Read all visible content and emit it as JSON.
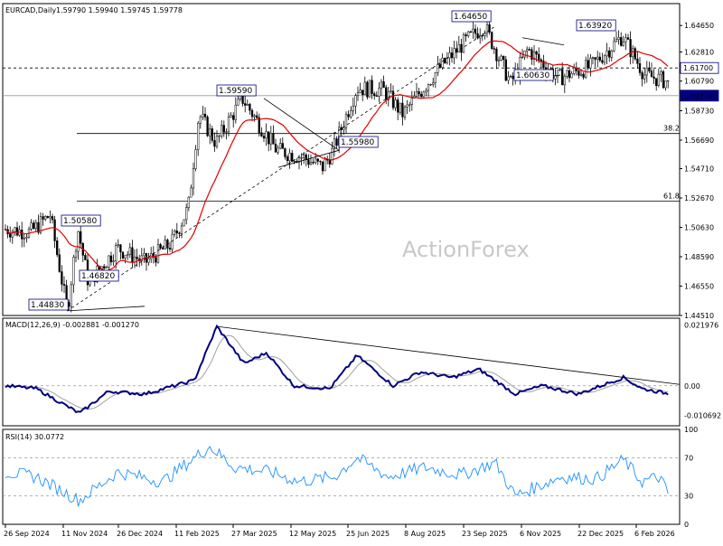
{
  "chart_data": [
    {
      "type": "candlestick",
      "title": "EURCAD,Daily",
      "ohlc": "1.59790 1.59940 1.59745 1.59778",
      "watermark": "ActionForex",
      "ylim": [
        1.4451,
        1.6617
      ],
      "y_ticks": [
        "1.64650",
        "1.62810",
        "1.60790",
        "1.58730",
        "1.56690",
        "1.54710",
        "1.52670",
        "1.50630",
        "1.48590",
        "1.46550",
        "1.44510"
      ],
      "price_labels": [
        {
          "text": "1.64650",
          "price": 1.6465,
          "date": "2025-09-25"
        },
        {
          "text": "1.63920",
          "price": 1.6392,
          "date": "2026-01-08"
        },
        {
          "text": "1.60630",
          "price": 1.6063,
          "date": "2025-10-15"
        },
        {
          "text": "1.59590",
          "price": 1.5959,
          "date": "2025-03-25"
        },
        {
          "text": "1.55980",
          "price": 1.5598,
          "date": "2025-06-02"
        },
        {
          "text": "1.50580",
          "price": 1.5058,
          "date": "2024-11-20"
        },
        {
          "text": "1.46820",
          "price": 1.4682,
          "date": "2024-11-28"
        },
        {
          "text": "1.44830",
          "price": 1.4483,
          "date": "2024-11-12"
        }
      ],
      "right_labels": [
        {
          "text": "1.61700",
          "price": 1.617
        },
        {
          "text": "1.59778",
          "price": 1.59778
        }
      ],
      "fib_levels": [
        {
          "text": "38.2",
          "price": 1.5715
        },
        {
          "text": "61.8",
          "price": 1.5246
        }
      ],
      "last_price": 1.59778
    },
    {
      "type": "line",
      "title": "MACD(12,26,9) -0.002881 -0.001270",
      "ylim": [
        -0.0145,
        0.0245
      ],
      "y_ticks": [
        "0.021976",
        "0.00",
        "-0.010692"
      ]
    },
    {
      "type": "line",
      "title": "RSI(14) 30.0772",
      "ylim": [
        0,
        100
      ],
      "y_ticks": [
        "100",
        "70",
        "30",
        "0"
      ],
      "levels": [
        70,
        30
      ]
    }
  ],
  "x_ticks": [
    "26 Sep 2024",
    "11 Nov 2024",
    "26 Dec 2024",
    "11 Feb 2025",
    "27 Mar 2025",
    "12 May 2025",
    "25 Jun 2025",
    "8 Aug 2025",
    "23 Sep 2025",
    "6 Nov 2025",
    "22 Dec 2025",
    "6 Feb 2026"
  ],
  "colors": {
    "candle": "#000000",
    "ma": "#e00000",
    "macd": "#000080",
    "signal": "#a0a0a0",
    "rsi": "#1e90ff",
    "label_border": "#000080",
    "last_bg": "#000080"
  }
}
